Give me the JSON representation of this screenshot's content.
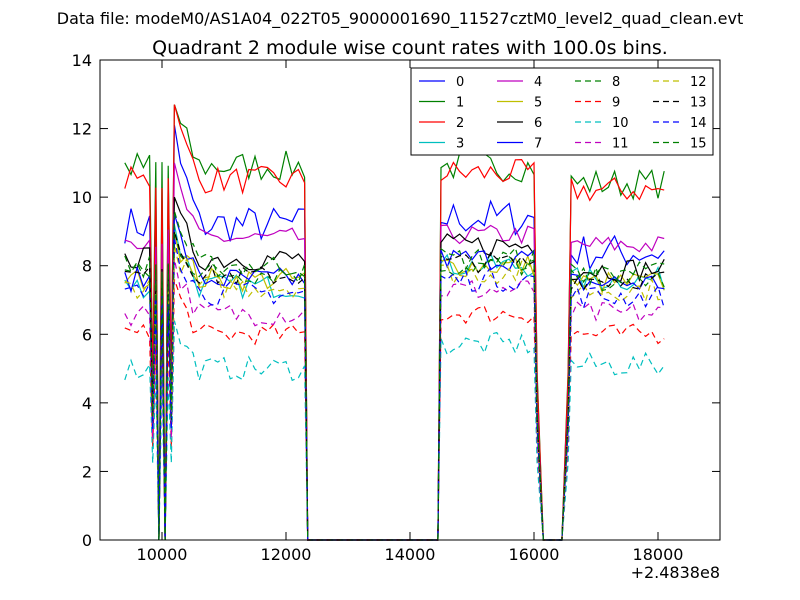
{
  "chart_data": {
    "type": "line",
    "suptitle": "Data file: modeM0/AS1A04_022T05_9000001690_11527cztM0_level2_quad_clean.evt",
    "title": "Quadrant 2 module wise count rates with 100.0s bins.",
    "xlabel": "",
    "ylabel": "",
    "x_offset_label": "+2.4838e8",
    "xlim": [
      9000,
      19000
    ],
    "ylim": [
      0,
      14
    ],
    "xticks": [
      10000,
      12000,
      14000,
      16000,
      18000
    ],
    "yticks": [
      0,
      2,
      4,
      6,
      8,
      10,
      12,
      14
    ],
    "xtick_labels": [
      "10000",
      "12000",
      "14000",
      "16000",
      "18000"
    ],
    "ytick_labels": [
      "0",
      "2",
      "4",
      "6",
      "8",
      "10",
      "12",
      "14"
    ],
    "grid": false,
    "legend": {
      "placement": "top-right",
      "columns": 4
    },
    "x_segments": [
      {
        "start": 9400,
        "end": 12300
      },
      {
        "start": 14500,
        "end": 16000
      },
      {
        "start": 16600,
        "end": 18100
      }
    ],
    "gap_points": [
      [
        9850,
        3
      ],
      [
        9950,
        0
      ],
      [
        10050,
        0
      ],
      [
        10150,
        3
      ],
      [
        12350,
        0
      ],
      [
        14450,
        0
      ],
      [
        16050,
        3
      ],
      [
        16150,
        0
      ],
      [
        16250,
        0
      ],
      [
        16350,
        0
      ],
      [
        16450,
        0
      ],
      [
        16550,
        3
      ]
    ],
    "series": [
      {
        "name": "0",
        "color": "#0000ff",
        "dash": "solid",
        "segment_levels": [
          9.2,
          9.4,
          8.4
        ],
        "peak": 12.1,
        "noise": 0.55
      },
      {
        "name": "1",
        "color": "#008000",
        "dash": "solid",
        "segment_levels": [
          10.9,
          10.9,
          10.4
        ],
        "peak": 12.7,
        "noise": 0.45
      },
      {
        "name": "2",
        "color": "#ff0000",
        "dash": "solid",
        "segment_levels": [
          10.5,
          10.7,
          10.2
        ],
        "peak": 12.7,
        "noise": 0.4
      },
      {
        "name": "3",
        "color": "#00bfbf",
        "dash": "solid",
        "segment_levels": [
          7.4,
          8.0,
          7.6
        ],
        "peak": 9.2,
        "noise": 0.35
      },
      {
        "name": "4",
        "color": "#bf00bf",
        "dash": "solid",
        "segment_levels": [
          8.8,
          8.9,
          8.6
        ],
        "peak": 11.0,
        "noise": 0.3
      },
      {
        "name": "5",
        "color": "#bfbf00",
        "dash": "solid",
        "segment_levels": [
          7.6,
          8.0,
          7.5
        ],
        "peak": 9.0,
        "noise": 0.35
      },
      {
        "name": "6",
        "color": "#000000",
        "dash": "solid",
        "segment_levels": [
          8.2,
          8.6,
          7.9
        ],
        "peak": 10.0,
        "noise": 0.35
      },
      {
        "name": "7",
        "color": "#0000ff",
        "dash": "solid",
        "segment_levels": [
          7.6,
          8.2,
          7.5
        ],
        "peak": 9.5,
        "noise": 0.35
      },
      {
        "name": "8",
        "color": "#008000",
        "dash": "dashed",
        "segment_levels": [
          7.8,
          8.0,
          7.6
        ],
        "peak": 9.0,
        "noise": 0.35
      },
      {
        "name": "9",
        "color": "#ff0000",
        "dash": "dashed",
        "segment_levels": [
          6.0,
          6.6,
          6.0
        ],
        "peak": 7.6,
        "noise": 0.3
      },
      {
        "name": "10",
        "color": "#00bfbf",
        "dash": "dashed",
        "segment_levels": [
          5.0,
          5.7,
          5.1
        ],
        "peak": 6.4,
        "noise": 0.35
      },
      {
        "name": "11",
        "color": "#bf00bf",
        "dash": "dashed",
        "segment_levels": [
          6.6,
          7.3,
          6.6
        ],
        "peak": 8.2,
        "noise": 0.35
      },
      {
        "name": "12",
        "color": "#bfbf00",
        "dash": "dashed",
        "segment_levels": [
          7.4,
          7.8,
          7.3
        ],
        "peak": 8.6,
        "noise": 0.35
      },
      {
        "name": "13",
        "color": "#000000",
        "dash": "dashed",
        "segment_levels": [
          7.7,
          8.1,
          7.6
        ],
        "peak": 9.0,
        "noise": 0.3
      },
      {
        "name": "14",
        "color": "#0000ff",
        "dash": "dashed",
        "segment_levels": [
          7.2,
          7.6,
          7.1
        ],
        "peak": 8.8,
        "noise": 0.35
      },
      {
        "name": "15",
        "color": "#008000",
        "dash": "dashed",
        "segment_levels": [
          8.0,
          8.2,
          7.8
        ],
        "peak": 9.6,
        "noise": 0.35
      }
    ]
  }
}
